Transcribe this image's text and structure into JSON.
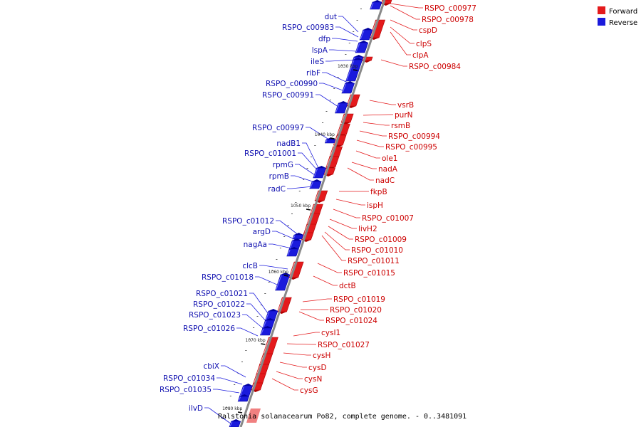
{
  "colors": {
    "forward": "#e41a1c",
    "forward_dark": "#b00000",
    "forward_light": "#f08080",
    "reverse": "#1a1adc",
    "reverse_dark": "#0000a0",
    "label_forward": "#cc0000",
    "label_reverse": "#1010b0",
    "axis": "#888888"
  },
  "legend": [
    {
      "label": "Forward",
      "strand": "forward"
    },
    {
      "label": "Reverse",
      "strand": "reverse"
    }
  ],
  "caption": "Ralstonia solanacearum Po82, complete genome. - 0..3481091",
  "ticks": [
    "1030 kbp",
    "1040 kbp",
    "1050 kbp",
    "1060 kbp",
    "1070 kbp",
    "1080 kbp"
  ],
  "forward_genes": [
    "RSPO_c00977",
    "RSPO_c00978",
    "cspD",
    "clpS",
    "clpA",
    "RSPO_c00984",
    "vsrB",
    "purN",
    "rsmB",
    "RSPO_c00994",
    "RSPO_c00995",
    "ole1",
    "nadA",
    "nadC",
    "fkpB",
    "ispH",
    "RSPO_c01007",
    "livH2",
    "RSPO_c01009",
    "RSPO_c01010",
    "RSPO_c01011",
    "RSPO_c01015",
    "dctB",
    "RSPO_c01019",
    "RSPO_c01020",
    "RSPO_c01024",
    "cysI1",
    "RSPO_c01027",
    "cysH",
    "cysD",
    "cysN",
    "cysG"
  ],
  "reverse_genes": [
    "dut",
    "RSPO_c00983",
    "dfp",
    "lspA",
    "ileS",
    "ribF",
    "RSPO_c00990",
    "RSPO_c00991",
    "RSPO_c00997",
    "nadB1",
    "RSPO_c01001",
    "rpmG",
    "rpmB",
    "radC",
    "RSPO_c01012",
    "argD",
    "nagAa",
    "clcB",
    "RSPO_c01018",
    "RSPO_c01021",
    "RSPO_c01022",
    "RSPO_c01023",
    "RSPO_c01026",
    "cbiX",
    "RSPO_c01034",
    "RSPO_c01035",
    "ilvD"
  ]
}
